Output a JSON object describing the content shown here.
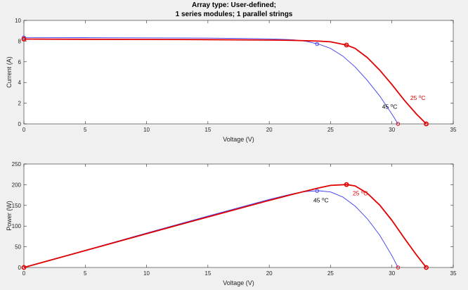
{
  "figure": {
    "title_lines": [
      "Array type: User-defined;",
      "1 series modules; 1 parallel strings"
    ]
  },
  "colors": {
    "axes_bg": "#ffffff",
    "figure_bg": "#f0f0f0",
    "curve_25C": "#e00000",
    "curve_45C": "#3c3cf0"
  },
  "chart_data": [
    {
      "type": "line",
      "title": "Array type: User-defined; 1 series modules; 1 parallel strings",
      "xlabel": "Voltage (V)",
      "ylabel": "Current (A)",
      "xlim": [
        0,
        35
      ],
      "ylim": [
        0,
        10
      ],
      "xticks": [
        0,
        5,
        10,
        15,
        20,
        25,
        30,
        35
      ],
      "yticks": [
        0,
        2,
        4,
        6,
        8,
        10
      ],
      "grid": false,
      "series": [
        {
          "name": "25 °C",
          "label_text": "25",
          "label_unit": "C",
          "x": [
            0,
            5,
            10,
            15,
            20,
            22,
            24,
            25,
            26.3,
            27,
            28,
            29,
            30,
            31,
            32,
            32.8
          ],
          "y": [
            8.2,
            8.18,
            8.16,
            8.14,
            8.1,
            8.07,
            8.0,
            7.93,
            7.62,
            7.3,
            6.4,
            5.2,
            3.8,
            2.3,
            0.95,
            0
          ],
          "markers": [
            [
              0,
              8.2
            ],
            [
              26.3,
              7.62
            ],
            [
              32.8,
              0
            ]
          ],
          "label_at": [
            31.5,
            2.3
          ]
        },
        {
          "name": "45 °C",
          "label_text": "45",
          "label_unit": "C",
          "x": [
            0,
            5,
            10,
            15,
            20,
            21,
            22,
            23,
            24,
            25,
            26,
            27,
            28,
            29,
            30,
            30.5
          ],
          "y": [
            8.35,
            8.33,
            8.31,
            8.29,
            8.22,
            8.18,
            8.12,
            7.98,
            7.72,
            7.3,
            6.55,
            5.5,
            4.2,
            2.7,
            0.95,
            0
          ],
          "markers": [
            [
              0,
              8.35
            ],
            [
              23.9,
              7.72
            ],
            [
              30.5,
              0
            ]
          ],
          "label_at": [
            29.2,
            1.45
          ]
        }
      ]
    },
    {
      "type": "line",
      "xlabel": "Voltage (V)",
      "ylabel": "Power (W)",
      "xlim": [
        0,
        35
      ],
      "ylim": [
        0,
        250
      ],
      "xticks": [
        0,
        5,
        10,
        15,
        20,
        25,
        30,
        35
      ],
      "yticks": [
        0,
        50,
        100,
        150,
        200,
        250
      ],
      "grid": false,
      "series": [
        {
          "name": "25 °C",
          "label_text": "25",
          "label_unit": "C",
          "x": [
            0,
            5,
            10,
            15,
            20,
            22,
            24,
            25,
            26.3,
            27,
            28,
            29,
            30,
            31,
            32,
            32.8
          ],
          "y": [
            0,
            40.9,
            81.6,
            122.1,
            162,
            177.5,
            192,
            198.3,
            200.4,
            197.1,
            179.2,
            150.8,
            114,
            71.3,
            30.4,
            0
          ],
          "markers": [
            [
              0,
              0
            ],
            [
              26.3,
              200.4
            ],
            [
              32.8,
              0
            ]
          ],
          "label_at": [
            26.8,
            174
          ]
        },
        {
          "name": "45 °C",
          "label_text": "45",
          "label_unit": "C",
          "x": [
            0,
            5,
            10,
            15,
            20,
            21,
            22,
            23,
            24,
            25,
            26,
            27,
            28,
            29,
            30,
            30.5
          ],
          "y": [
            0,
            41.7,
            83.1,
            124.4,
            164.4,
            171.8,
            178.6,
            183.5,
            185.3,
            182.5,
            170.3,
            148.5,
            117.6,
            78.3,
            28.5,
            0
          ],
          "markers": [
            [
              0,
              0
            ],
            [
              23.9,
              185
            ],
            [
              30.5,
              0
            ]
          ],
          "label_at": [
            23.6,
            157
          ]
        }
      ]
    }
  ]
}
